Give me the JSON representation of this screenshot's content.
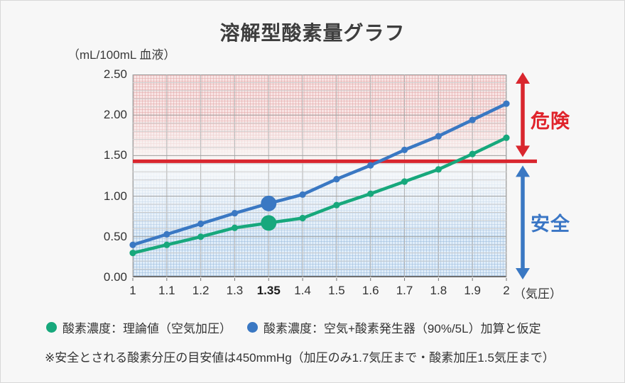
{
  "title": "溶解型酸素量グラフ",
  "y_axis_unit": "（mL/100mL 血液）",
  "x_axis_unit": "（気圧）",
  "danger_label": "危険",
  "safe_label": "安全",
  "footnote": "※安全とされる酸素分圧の目安値は450mmHg（加圧のみ1.7気圧まで・酸素加圧1.5気圧まで）",
  "colors": {
    "theoretical_green": "#17a87c",
    "generator_blue": "#3a78c3",
    "threshold_red": "#d9262e",
    "danger_text": "#e0232b",
    "safe_text": "#3a76c5",
    "danger_zone_pink": "#f8e5e5",
    "safe_zone_blue": "#e0edf9"
  },
  "legend": [
    {
      "label": "酸素濃度：理論値（空気加圧）",
      "color": "#17a87c"
    },
    {
      "label": "酸素濃度：空気+酸素発生器（90%/5L）加算と仮定",
      "color": "#3a78c3"
    }
  ],
  "chart_data": {
    "type": "line",
    "title": "溶解型酸素量グラフ",
    "ylabel": "（mL/100mL 血液）",
    "xlabel": "（気圧）",
    "ylim": [
      0,
      2.5
    ],
    "y_ticks": [
      "2.50",
      "2.00",
      "1.50",
      "1.00",
      "0.50",
      "0.00"
    ],
    "y_minor_step": 0.1,
    "y_major_step": 0.5,
    "grid": true,
    "categories": [
      "1",
      "1.1",
      "1.2",
      "1.3",
      "1.35",
      "1.4",
      "1.5",
      "1.6",
      "1.7",
      "1.8",
      "1.9",
      "2"
    ],
    "emphasized_category": "1.35",
    "series": [
      {
        "name": "酸素濃度：理論値（空気加圧）",
        "color": "#17a87c",
        "values": [
          0.3,
          0.4,
          0.5,
          0.61,
          0.67,
          0.73,
          0.89,
          1.03,
          1.18,
          1.33,
          1.52,
          1.72
        ]
      },
      {
        "name": "酸素濃度：空気+酸素発生器（90%/5L）加算と仮定",
        "color": "#3a78c3",
        "values": [
          0.4,
          0.53,
          0.66,
          0.79,
          0.91,
          1.02,
          1.21,
          1.38,
          1.57,
          1.74,
          1.94,
          2.14
        ]
      }
    ],
    "threshold": {
      "value": 1.43,
      "color": "#d9262e",
      "label_above": "危険",
      "label_below": "安全"
    },
    "legend_position": "bottom"
  }
}
